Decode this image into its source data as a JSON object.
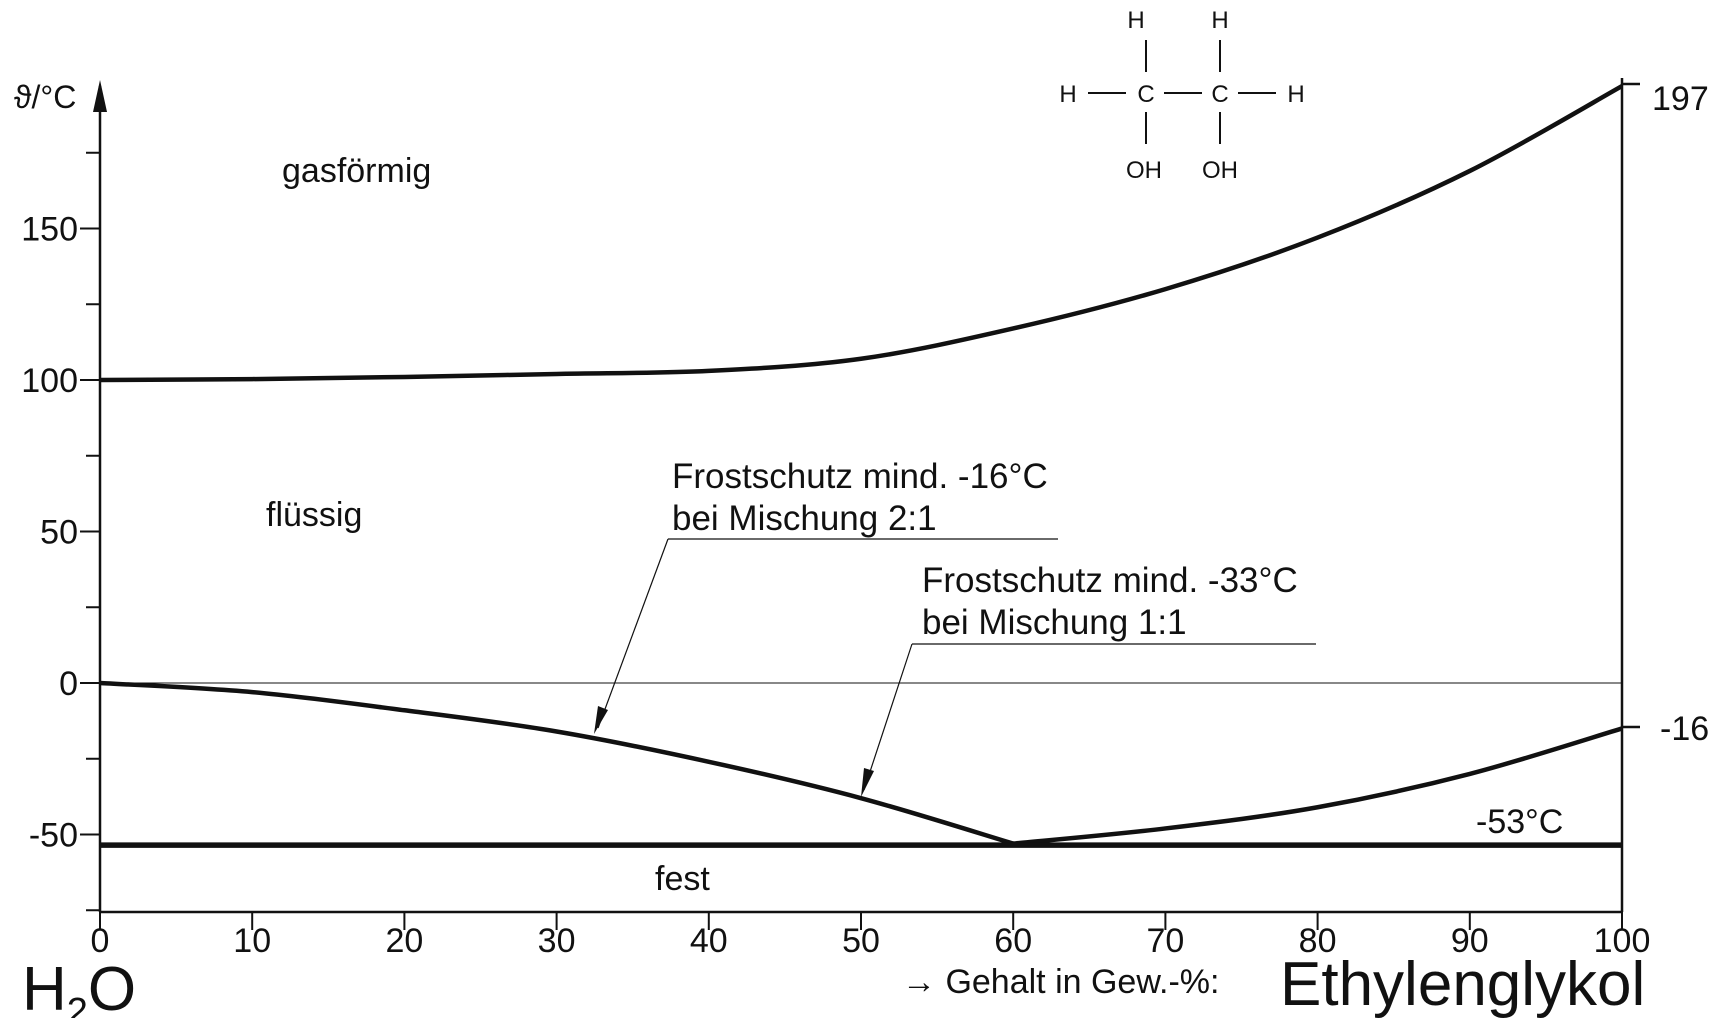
{
  "chart_data": {
    "type": "line",
    "ylabel": "ϑ/°C",
    "xlim": [
      0,
      100
    ],
    "ylim": [
      -75,
      197
    ],
    "x_ticks": [
      0,
      10,
      20,
      30,
      40,
      50,
      60,
      70,
      80,
      90,
      100
    ],
    "y_ticks": [
      -50,
      0,
      50,
      100,
      150
    ],
    "right_ticks": [
      "197",
      "-16"
    ],
    "series": [
      {
        "points": [
          [
            0,
            100
          ],
          [
            10,
            100.3
          ],
          [
            20,
            101
          ],
          [
            30,
            102
          ],
          [
            40,
            103
          ],
          [
            50,
            107
          ],
          [
            60,
            117
          ],
          [
            70,
            130
          ],
          [
            80,
            147
          ],
          [
            90,
            169
          ],
          [
            100,
            197
          ]
        ]
      },
      {
        "points": [
          [
            0,
            0
          ],
          [
            10,
            -3
          ],
          [
            20,
            -9
          ],
          [
            30,
            -16
          ],
          [
            40,
            -26
          ],
          [
            50,
            -38
          ],
          [
            60,
            -53
          ]
        ]
      },
      {
        "points": [
          [
            60,
            -53
          ],
          [
            70,
            -48
          ],
          [
            80,
            -41
          ],
          [
            90,
            -30
          ],
          [
            100,
            -15
          ]
        ]
      },
      {
        "points": [
          [
            0,
            -53.5
          ],
          [
            100,
            -53.5
          ]
        ]
      }
    ],
    "regions": {
      "gas": "gasförmig",
      "liquid": "flüssig",
      "solid": "fest"
    },
    "annotations": {
      "frost1_line1": "Frostschutz mind. -16°C",
      "frost1_line2": "bei Mischung 2:1",
      "frost1_target": [
        33,
        -16
      ],
      "frost2_line1": "Frostschutz mind. -33°C",
      "frost2_line2": "bei Mischung 1:1",
      "frost2_target": [
        50,
        -33
      ],
      "eutectic": "-53°C"
    },
    "bottom": {
      "left_main": "H",
      "left_sub": "2",
      "left_end": "O",
      "xlabel": "→ Gehalt in Gew.-%:",
      "right": "Ethylenglykol"
    },
    "structure": {
      "h": "H",
      "c": "C",
      "oh": "OH"
    }
  }
}
